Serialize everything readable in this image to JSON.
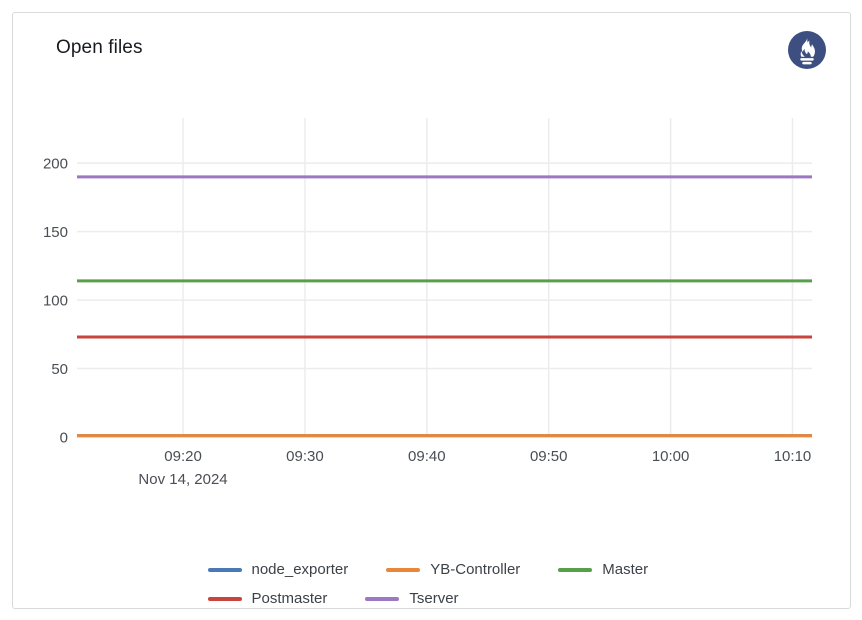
{
  "panel": {
    "title": "Open files",
    "logo_icon": "prometheus-icon",
    "logo_color": "#3d4e81",
    "border_color": "#d9d9d9"
  },
  "chart_data": {
    "type": "line",
    "title": "Open files",
    "grid": true,
    "legend_position": "bottom",
    "x_axis": {
      "date_label": "Nov 14, 2024",
      "tick_labels": [
        "09:20",
        "09:30",
        "09:40",
        "09:50",
        "10:00",
        "10:10"
      ],
      "tick_minutes": [
        560,
        570,
        580,
        590,
        600,
        610
      ],
      "domain_minutes": [
        551.3,
        611.6
      ]
    },
    "y_axis": {
      "ticks": [
        0,
        50,
        100,
        150,
        200
      ],
      "range": [
        0,
        233
      ]
    },
    "series": [
      {
        "name": "node_exporter",
        "color": "#4a7ab5",
        "value": 1
      },
      {
        "name": "YB-Controller",
        "color": "#e8873a",
        "value": 1
      },
      {
        "name": "Master",
        "color": "#56a04a",
        "value": 114
      },
      {
        "name": "Postmaster",
        "color": "#c8443f",
        "value": 73
      },
      {
        "name": "Tserver",
        "color": "#9d78c2",
        "value": 190
      }
    ],
    "grid_color": "#ececee",
    "axis_text_color": "#4a4e55"
  }
}
